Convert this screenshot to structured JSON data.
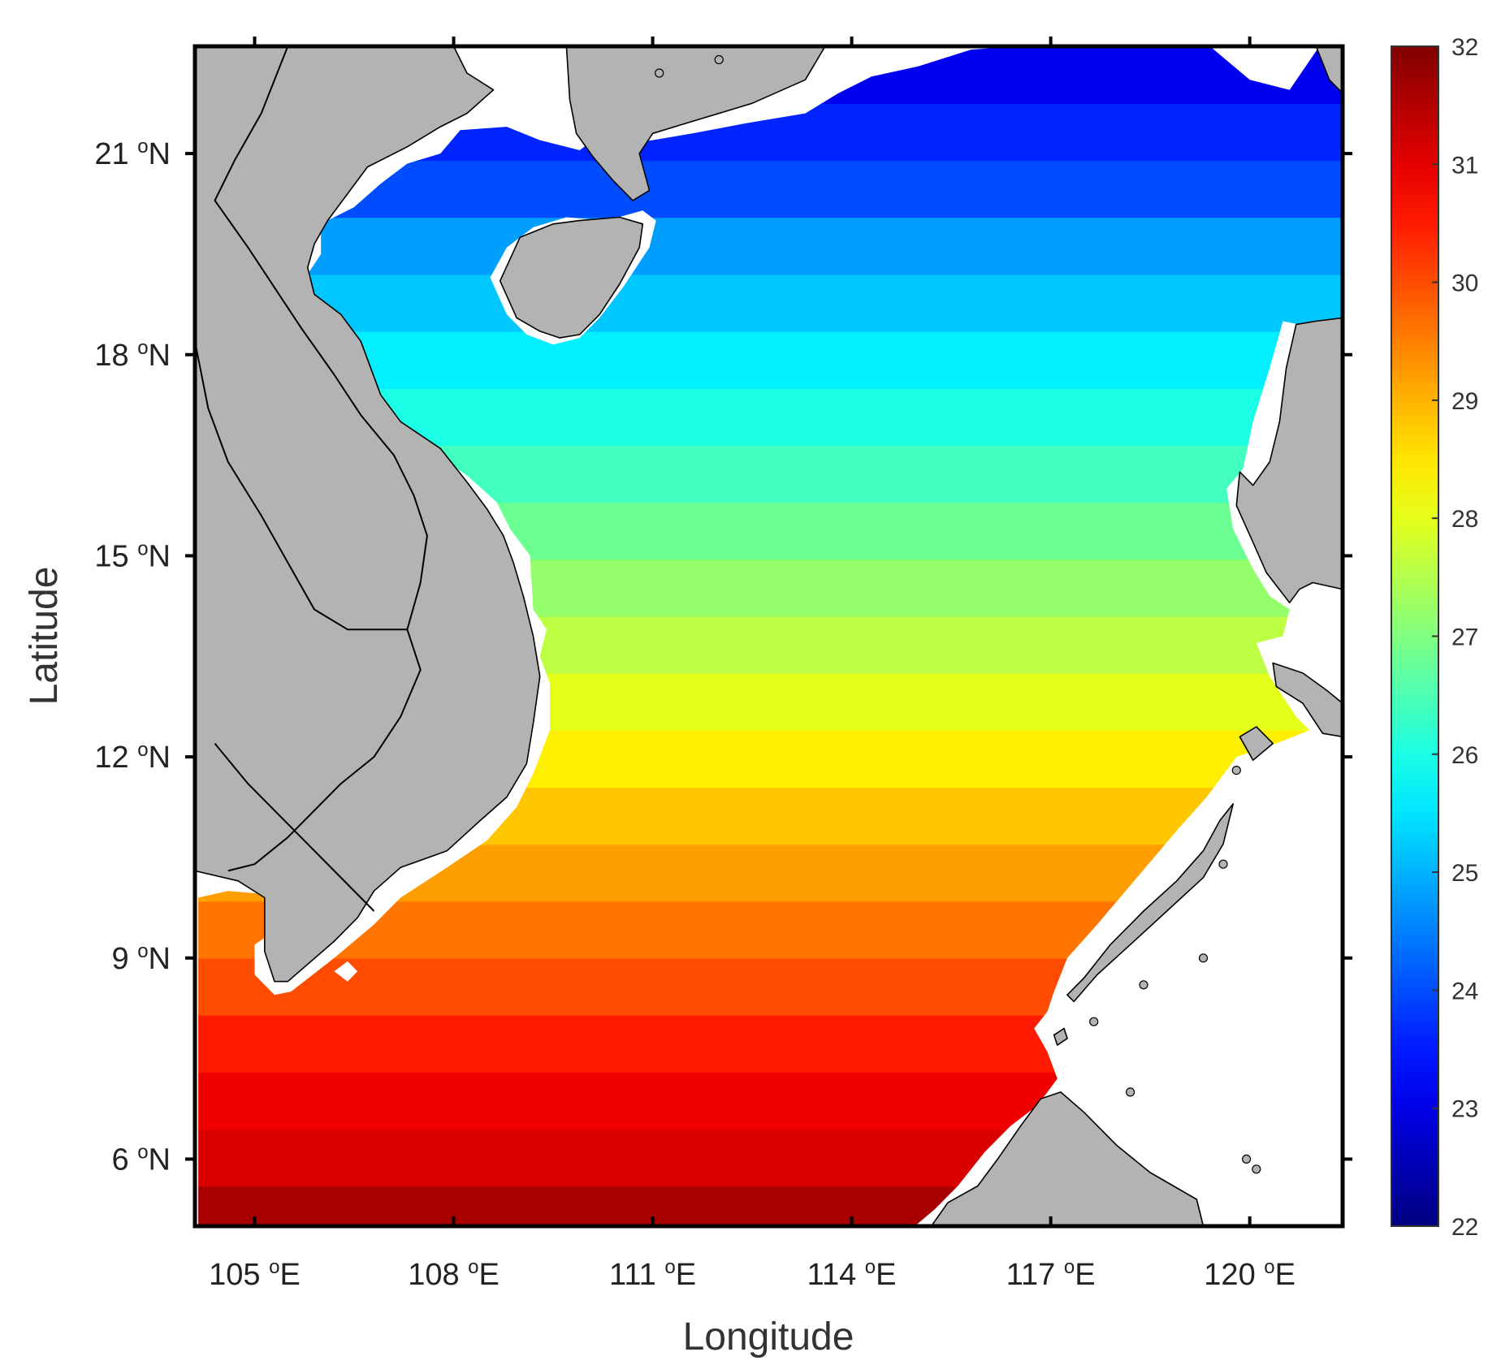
{
  "chart_data": {
    "type": "heatmap",
    "title": "",
    "xlabel": "Longitude",
    "ylabel": "Latitude",
    "xlim": [
      104.1,
      121.4
    ],
    "ylim": [
      5.0,
      22.6
    ],
    "x_ticks": [
      {
        "value": 105,
        "label": "105",
        "unit": "o",
        "hemi": "E"
      },
      {
        "value": 108,
        "label": "108",
        "unit": "o",
        "hemi": "E"
      },
      {
        "value": 111,
        "label": "111",
        "unit": "o",
        "hemi": "E"
      },
      {
        "value": 114,
        "label": "114",
        "unit": "o",
        "hemi": "E"
      },
      {
        "value": 117,
        "label": "117",
        "unit": "o",
        "hemi": "E"
      },
      {
        "value": 120,
        "label": "120",
        "unit": "o",
        "hemi": "E"
      }
    ],
    "y_ticks": [
      {
        "value": 6,
        "label": "6",
        "unit": "o",
        "hemi": "N"
      },
      {
        "value": 9,
        "label": "9",
        "unit": "o",
        "hemi": "N"
      },
      {
        "value": 12,
        "label": "12",
        "unit": "o",
        "hemi": "N"
      },
      {
        "value": 15,
        "label": "15",
        "unit": "o",
        "hemi": "N"
      },
      {
        "value": 18,
        "label": "18",
        "unit": "o",
        "hemi": "N"
      },
      {
        "value": 21,
        "label": "21",
        "unit": "o",
        "hemi": "N"
      }
    ],
    "colorbar": {
      "range": [
        22,
        32
      ],
      "ticks": [
        "22",
        "23",
        "24",
        "25",
        "26",
        "27",
        "28",
        "29",
        "30",
        "31",
        "32"
      ],
      "colormap": "jet"
    },
    "bands": [
      {
        "lat_min": 5.0,
        "lat_max": 5.6,
        "value": 31.6
      },
      {
        "lat_min": 5.6,
        "lat_max": 6.45,
        "value": 31.1
      },
      {
        "lat_min": 6.45,
        "lat_max": 7.3,
        "value": 30.9
      },
      {
        "lat_min": 7.3,
        "lat_max": 8.15,
        "value": 30.5
      },
      {
        "lat_min": 8.15,
        "lat_max": 9.0,
        "value": 30.0
      },
      {
        "lat_min": 9.0,
        "lat_max": 9.85,
        "value": 29.6
      },
      {
        "lat_min": 9.85,
        "lat_max": 10.7,
        "value": 29.2
      },
      {
        "lat_min": 10.7,
        "lat_max": 11.55,
        "value": 28.8
      },
      {
        "lat_min": 11.55,
        "lat_max": 12.4,
        "value": 28.4
      },
      {
        "lat_min": 12.4,
        "lat_max": 13.25,
        "value": 28.0
      },
      {
        "lat_min": 13.25,
        "lat_max": 14.1,
        "value": 27.6
      },
      {
        "lat_min": 14.1,
        "lat_max": 14.95,
        "value": 27.2
      },
      {
        "lat_min": 14.95,
        "lat_max": 15.8,
        "value": 26.8
      },
      {
        "lat_min": 15.8,
        "lat_max": 16.65,
        "value": 26.4
      },
      {
        "lat_min": 16.65,
        "lat_max": 17.5,
        "value": 26.0
      },
      {
        "lat_min": 17.5,
        "lat_max": 18.35,
        "value": 25.6
      },
      {
        "lat_min": 18.35,
        "lat_max": 19.2,
        "value": 25.2
      },
      {
        "lat_min": 19.2,
        "lat_max": 20.05,
        "value": 24.8
      },
      {
        "lat_min": 20.05,
        "lat_max": 20.9,
        "value": 24.0
      },
      {
        "lat_min": 20.9,
        "lat_max": 21.75,
        "value": 23.6
      },
      {
        "lat_min": 21.75,
        "lat_max": 22.6,
        "value": 23.1
      }
    ],
    "colors": {
      "land": "#b3b3b3",
      "coast": "#000000",
      "nodata": "#ffffff",
      "frame": "#000000"
    }
  }
}
